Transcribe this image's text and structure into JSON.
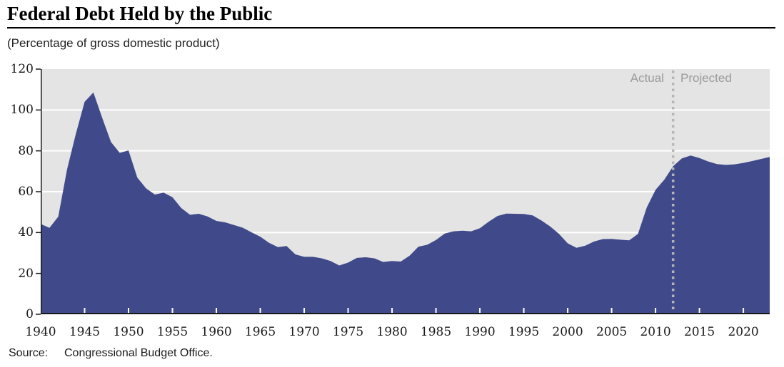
{
  "header": {
    "title": "Federal Debt Held by the Public",
    "subtitle": "(Percentage of gross domestic product)"
  },
  "annotations": {
    "actual": "Actual",
    "projected": "Projected"
  },
  "source": {
    "label": "Source:",
    "text": "Congressional Budget Office."
  },
  "colors": {
    "area": "#404a8a",
    "plot_bg": "#e4e4e4",
    "grid": "#ffffff",
    "divider": "#b5b5b5",
    "annotation_text": "#9a9a9a",
    "axis": "#1a1a1a",
    "x_tick": "#ffffff"
  },
  "chart_data": {
    "type": "area",
    "title": "Federal Debt Held by the Public",
    "subtitle": "(Percentage of gross domestic product)",
    "xlabel": "",
    "ylabel": "Percentage of gross domestic product",
    "xlim": [
      1940,
      2023
    ],
    "ylim": [
      0,
      120
    ],
    "xticks": [
      1940,
      1945,
      1950,
      1955,
      1960,
      1965,
      1970,
      1975,
      1980,
      1985,
      1990,
      1995,
      2000,
      2005,
      2010,
      2015,
      2020
    ],
    "yticks": [
      0,
      20,
      40,
      60,
      80,
      100,
      120
    ],
    "grid": "horizontal",
    "divider_year": 2012,
    "divider_labels": [
      "Actual",
      "Projected"
    ],
    "years": [
      1940,
      1941,
      1942,
      1943,
      1944,
      1945,
      1946,
      1947,
      1948,
      1949,
      1950,
      1951,
      1952,
      1953,
      1954,
      1955,
      1956,
      1957,
      1958,
      1959,
      1960,
      1961,
      1962,
      1963,
      1964,
      1965,
      1966,
      1967,
      1968,
      1969,
      1970,
      1971,
      1972,
      1973,
      1974,
      1975,
      1976,
      1977,
      1978,
      1979,
      1980,
      1981,
      1982,
      1983,
      1984,
      1985,
      1986,
      1987,
      1988,
      1989,
      1990,
      1991,
      1992,
      1993,
      1994,
      1995,
      1996,
      1997,
      1998,
      1999,
      2000,
      2001,
      2002,
      2003,
      2004,
      2005,
      2006,
      2007,
      2008,
      2009,
      2010,
      2011,
      2012,
      2013,
      2014,
      2015,
      2016,
      2017,
      2018,
      2019,
      2020,
      2021,
      2022,
      2023
    ],
    "values": [
      44.2,
      42.3,
      47.8,
      70.9,
      88.3,
      104.0,
      108.6,
      96.2,
      84.3,
      79.0,
      80.2,
      66.9,
      61.6,
      58.6,
      59.5,
      57.3,
      52.0,
      48.7,
      49.2,
      47.9,
      45.7,
      45.0,
      43.7,
      42.4,
      40.1,
      38.0,
      35.0,
      32.9,
      33.4,
      29.3,
      28.1,
      28.1,
      27.4,
      26.1,
      23.9,
      25.3,
      27.6,
      27.9,
      27.4,
      25.6,
      26.1,
      25.8,
      28.7,
      33.1,
      34.0,
      36.4,
      39.5,
      40.6,
      40.9,
      40.6,
      42.1,
      45.3,
      48.1,
      49.3,
      49.2,
      49.1,
      48.4,
      45.9,
      43.0,
      39.4,
      34.7,
      32.5,
      33.6,
      35.6,
      36.8,
      36.9,
      36.5,
      36.2,
      39.3,
      52.3,
      60.9,
      65.9,
      72.5,
      76.3,
      77.7,
      76.5,
      74.8,
      73.5,
      73.1,
      73.4,
      74.1,
      75.0,
      76.0,
      77.0
    ]
  }
}
